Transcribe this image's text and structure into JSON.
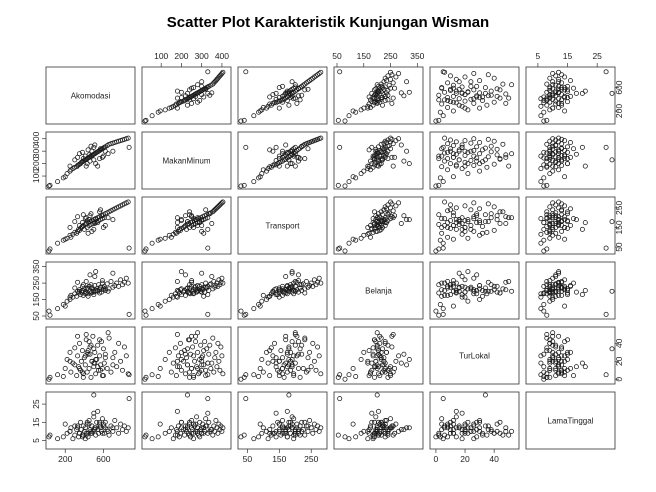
{
  "chart_data": {
    "type": "scatter",
    "title": "Scatter Plot Karakteristik Kunjungan Wisman",
    "variables": [
      "Akomodasi",
      "MakanMinum",
      "Transport",
      "Belanja",
      "TurLokal",
      "LamaTinggal"
    ],
    "ranges": {
      "Akomodasi": [
        30,
        900
      ],
      "MakanMinum": [
        20,
        430
      ],
      "Transport": [
        30,
        290
      ],
      "Belanja": [
        50,
        360
      ],
      "TurLokal": [
        -2,
        55
      ],
      "LamaTinggal": [
        2,
        30
      ]
    },
    "ticks": {
      "Akomodasi": [
        "200",
        "600"
      ],
      "MakanMinum": [
        "100",
        "200",
        "300",
        "400"
      ],
      "Transport": [
        "50",
        "150",
        "250"
      ],
      "Belanja": [
        "50",
        "150",
        "250",
        "350"
      ],
      "TurLokal": [
        "0",
        "20",
        "40"
      ],
      "LamaTinggal": [
        "5",
        "15",
        "25"
      ]
    },
    "points": [
      [
        40,
        25,
        40,
        55,
        2,
        8
      ],
      [
        120,
        55,
        70,
        95,
        5,
        6
      ],
      [
        180,
        85,
        85,
        120,
        3,
        7
      ],
      [
        200,
        95,
        90,
        110,
        12,
        14
      ],
      [
        220,
        120,
        95,
        140,
        22,
        9
      ],
      [
        250,
        140,
        110,
        150,
        30,
        10
      ],
      [
        260,
        150,
        100,
        175,
        8,
        12
      ],
      [
        280,
        160,
        115,
        165,
        18,
        6
      ],
      [
        300,
        170,
        125,
        185,
        35,
        8
      ],
      [
        320,
        175,
        120,
        170,
        4,
        11
      ],
      [
        330,
        185,
        130,
        200,
        26,
        13
      ],
      [
        340,
        190,
        140,
        190,
        14,
        7
      ],
      [
        350,
        195,
        135,
        210,
        40,
        9
      ],
      [
        360,
        200,
        145,
        180,
        10,
        15
      ],
      [
        370,
        210,
        150,
        195,
        20,
        11
      ],
      [
        380,
        215,
        155,
        205,
        32,
        8
      ],
      [
        390,
        220,
        160,
        175,
        6,
        13
      ],
      [
        400,
        225,
        140,
        215,
        24,
        10
      ],
      [
        410,
        230,
        165,
        200,
        16,
        12
      ],
      [
        420,
        235,
        170,
        190,
        44,
        9
      ],
      [
        430,
        240,
        150,
        220,
        8,
        14
      ],
      [
        440,
        245,
        175,
        185,
        28,
        7
      ],
      [
        450,
        250,
        160,
        230,
        12,
        16
      ],
      [
        460,
        255,
        180,
        200,
        36,
        11
      ],
      [
        470,
        260,
        165,
        190,
        2,
        9
      ],
      [
        480,
        265,
        185,
        225,
        20,
        13
      ],
      [
        490,
        270,
        170,
        210,
        48,
        10
      ],
      [
        500,
        275,
        190,
        195,
        14,
        18
      ],
      [
        510,
        280,
        175,
        235,
        30,
        12
      ],
      [
        520,
        285,
        195,
        205,
        6,
        8
      ],
      [
        530,
        290,
        180,
        215,
        22,
        15
      ],
      [
        540,
        295,
        200,
        200,
        38,
        11
      ],
      [
        550,
        300,
        185,
        240,
        10,
        9
      ],
      [
        560,
        305,
        205,
        210,
        26,
        14
      ],
      [
        570,
        310,
        190,
        225,
        16,
        12
      ],
      [
        580,
        315,
        210,
        195,
        42,
        10
      ],
      [
        590,
        320,
        195,
        250,
        4,
        17
      ],
      [
        600,
        325,
        215,
        220,
        34,
        13
      ],
      [
        610,
        330,
        200,
        230,
        18,
        9
      ],
      [
        620,
        335,
        220,
        205,
        28,
        15
      ],
      [
        640,
        345,
        225,
        245,
        12,
        11
      ],
      [
        660,
        355,
        230,
        215,
        46,
        8
      ],
      [
        680,
        360,
        235,
        260,
        8,
        13
      ],
      [
        700,
        365,
        240,
        225,
        24,
        10
      ],
      [
        720,
        370,
        245,
        235,
        30,
        16
      ],
      [
        740,
        375,
        250,
        250,
        14,
        12
      ],
      [
        760,
        380,
        255,
        230,
        40,
        9
      ],
      [
        780,
        385,
        260,
        270,
        20,
        14
      ],
      [
        800,
        390,
        265,
        240,
        10,
        11
      ],
      [
        820,
        395,
        270,
        255,
        36,
        13
      ],
      [
        840,
        400,
        275,
        280,
        26,
        10
      ],
      [
        860,
        405,
        280,
        250,
        6,
        12
      ],
      [
        350,
        280,
        160,
        200,
        12,
        9
      ],
      [
        420,
        180,
        200,
        260,
        50,
        8
      ],
      [
        500,
        330,
        140,
        180,
        18,
        20
      ],
      [
        460,
        220,
        210,
        300,
        28,
        11
      ],
      [
        380,
        290,
        175,
        230,
        8,
        7
      ],
      [
        560,
        240,
        230,
        190,
        44,
        15
      ],
      [
        300,
        230,
        180,
        220,
        16,
        13
      ],
      [
        440,
        310,
        120,
        170,
        32,
        9
      ],
      [
        520,
        200,
        190,
        320,
        22,
        12
      ],
      [
        600,
        260,
        150,
        210,
        4,
        14
      ],
      [
        470,
        340,
        220,
        240,
        38,
        10
      ],
      [
        410,
        260,
        195,
        185,
        26,
        6
      ],
      [
        540,
        180,
        175,
        205,
        14,
        21
      ],
      [
        330,
        250,
        205,
        255,
        48,
        12
      ],
      [
        480,
        300,
        130,
        195,
        20,
        9
      ],
      [
        570,
        320,
        240,
        225,
        10,
        13
      ],
      [
        430,
        200,
        185,
        215,
        30,
        15
      ],
      [
        510,
        350,
        170,
        290,
        18,
        11
      ],
      [
        650,
        280,
        200,
        200,
        52,
        10
      ],
      [
        390,
        240,
        215,
        240,
        2,
        8
      ],
      [
        620,
        300,
        160,
        215,
        24,
        12
      ],
      [
        450,
        270,
        190,
        230,
        42,
        14
      ],
      [
        590,
        250,
        210,
        265,
        12,
        9
      ],
      [
        500,
        230,
        180,
        200,
        34,
        30
      ],
      [
        30,
        20,
        30,
        80,
        0,
        7
      ],
      [
        870,
        330,
        45,
        60,
        5,
        28
      ],
      [
        250,
        180,
        150,
        165,
        20,
        10
      ],
      [
        700,
        300,
        190,
        310,
        16,
        12
      ]
    ]
  }
}
